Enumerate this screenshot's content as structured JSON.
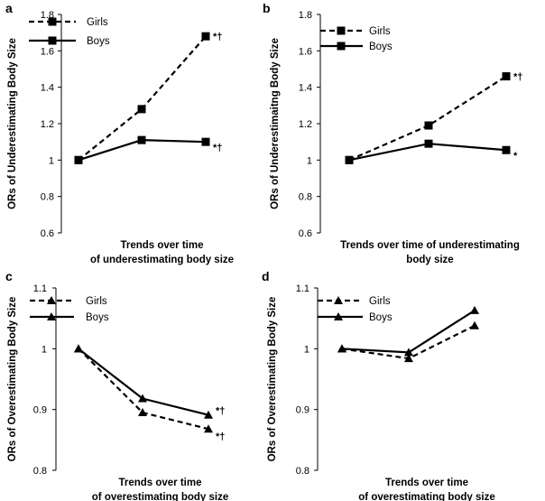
{
  "chart_data": [
    {
      "panel": "a",
      "type": "line",
      "ylabel": "ORs of Underestimating Body Size",
      "xlabel_lines": [
        "Trends over time",
        "of underestimating body size"
      ],
      "ylim": [
        0.6,
        1.8
      ],
      "yticks": [
        0.6,
        0.8,
        1,
        1.2,
        1.4,
        1.6,
        1.8
      ],
      "ytick_labels": [
        "0.6",
        "0.8",
        "1",
        "1.2",
        "1.4",
        "1.6",
        "1.8"
      ],
      "series": [
        {
          "name": "Girls",
          "style": "dashed",
          "marker": "square",
          "values": [
            1.0,
            1.28,
            1.68
          ],
          "annotation": "*†"
        },
        {
          "name": "Boys",
          "style": "solid",
          "marker": "square",
          "values": [
            1.0,
            1.11,
            1.1
          ],
          "annotation": "*†"
        }
      ]
    },
    {
      "panel": "b",
      "type": "line",
      "ylabel": "ORs of Underestimaitng Body Size",
      "xlabel_lines": [
        "Trends over time of underestimating",
        "body size"
      ],
      "ylim": [
        0.6,
        1.8
      ],
      "yticks": [
        0.6,
        0.8,
        1,
        1.2,
        1.4,
        1.6,
        1.8
      ],
      "ytick_labels": [
        "0.6",
        "0.8",
        "1",
        "1.2",
        "1.4",
        "1.6",
        "1.8"
      ],
      "series": [
        {
          "name": "Girls",
          "style": "dashed",
          "marker": "square",
          "values": [
            1.0,
            1.19,
            1.46
          ],
          "annotation": "*†"
        },
        {
          "name": "Boys",
          "style": "solid",
          "marker": "square",
          "values": [
            1.0,
            1.09,
            1.055
          ],
          "annotation": "*"
        }
      ]
    },
    {
      "panel": "c",
      "type": "line",
      "ylabel": "ORs of Overestimating Body Size",
      "xlabel_lines": [
        "Trends over time",
        "of overestimating body size"
      ],
      "ylim": [
        0.8,
        1.1
      ],
      "yticks": [
        0.8,
        0.9,
        1,
        1.1
      ],
      "ytick_labels": [
        "0.8",
        "0.9",
        "1",
        "1.1"
      ],
      "series": [
        {
          "name": "Girls",
          "style": "dashed",
          "marker": "triangle",
          "values": [
            1.0,
            0.895,
            0.868
          ],
          "annotation": "*†"
        },
        {
          "name": "Boys",
          "style": "solid",
          "marker": "triangle",
          "values": [
            1.0,
            0.918,
            0.891
          ],
          "annotation": "*†"
        }
      ]
    },
    {
      "panel": "d",
      "type": "line",
      "ylabel": "ORs of Overestimating Body Size",
      "xlabel_lines": [
        "Trends over time",
        "of overestimating body size"
      ],
      "ylim": [
        0.8,
        1.1
      ],
      "yticks": [
        0.8,
        0.9,
        1,
        1.1
      ],
      "ytick_labels": [
        "0.8",
        "0.9",
        "1",
        "1.1"
      ],
      "series": [
        {
          "name": "Girls",
          "style": "dashed",
          "marker": "triangle",
          "values": [
            1.0,
            0.984,
            1.038
          ],
          "annotation": ""
        },
        {
          "name": "Boys",
          "style": "solid",
          "marker": "triangle",
          "values": [
            1.0,
            0.994,
            1.063
          ],
          "annotation": ""
        }
      ]
    }
  ]
}
